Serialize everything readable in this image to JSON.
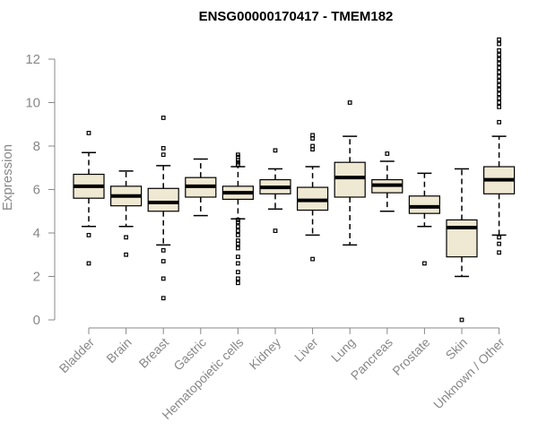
{
  "chart_data": {
    "type": "boxplot",
    "title": "ENSG00000170417 - TMEM182",
    "xlabel": "",
    "ylabel": "Expression",
    "ylim": [
      0,
      12
    ],
    "yticks": [
      0,
      2,
      4,
      6,
      8,
      10,
      12
    ],
    "categories": [
      "Bladder",
      "Brain",
      "Breast",
      "Gastric",
      "Hematopoietic cells",
      "Kidney",
      "Liver",
      "Lung",
      "Pancreas",
      "Prostate",
      "Skin",
      "Unknown / Other"
    ],
    "boxes": [
      {
        "q1": 5.6,
        "median": 6.15,
        "q3": 6.7,
        "lower_whisker": 4.3,
        "upper_whisker": 7.7,
        "outliers": [
          8.6,
          3.9,
          2.6
        ]
      },
      {
        "q1": 5.25,
        "median": 5.7,
        "q3": 6.15,
        "lower_whisker": 4.3,
        "upper_whisker": 6.85,
        "outliers": [
          3.8,
          3.0
        ]
      },
      {
        "q1": 5.0,
        "median": 5.4,
        "q3": 6.05,
        "lower_whisker": 3.45,
        "upper_whisker": 7.1,
        "outliers": [
          9.3,
          7.9,
          7.6,
          3.2,
          2.7,
          1.9,
          1.0
        ]
      },
      {
        "q1": 5.65,
        "median": 6.15,
        "q3": 6.55,
        "lower_whisker": 4.8,
        "upper_whisker": 7.4,
        "outliers": []
      },
      {
        "q1": 5.55,
        "median": 5.85,
        "q3": 6.15,
        "lower_whisker": 4.65,
        "upper_whisker": 7.05,
        "outliers": [
          7.6,
          7.5,
          7.35,
          7.25,
          7.15,
          4.6,
          4.5,
          4.3,
          4.1,
          3.9,
          3.65,
          3.5,
          3.3,
          2.9,
          2.6,
          2.2,
          1.9,
          1.7
        ]
      },
      {
        "q1": 5.8,
        "median": 6.1,
        "q3": 6.45,
        "lower_whisker": 5.1,
        "upper_whisker": 6.95,
        "outliers": [
          7.8,
          4.1
        ]
      },
      {
        "q1": 5.05,
        "median": 5.5,
        "q3": 6.1,
        "lower_whisker": 3.9,
        "upper_whisker": 7.05,
        "outliers": [
          8.5,
          8.35,
          8.0,
          7.85,
          2.8
        ]
      },
      {
        "q1": 5.65,
        "median": 6.55,
        "q3": 7.25,
        "lower_whisker": 3.45,
        "upper_whisker": 8.45,
        "outliers": [
          10.0
        ]
      },
      {
        "q1": 5.85,
        "median": 6.2,
        "q3": 6.45,
        "lower_whisker": 5.0,
        "upper_whisker": 7.3,
        "outliers": [
          7.65
        ]
      },
      {
        "q1": 4.9,
        "median": 5.2,
        "q3": 5.7,
        "lower_whisker": 4.3,
        "upper_whisker": 6.75,
        "outliers": [
          2.6
        ]
      },
      {
        "q1": 2.9,
        "median": 4.25,
        "q3": 4.6,
        "lower_whisker": 2.0,
        "upper_whisker": 6.95,
        "outliers": [
          0.0
        ]
      },
      {
        "q1": 5.8,
        "median": 6.45,
        "q3": 7.05,
        "lower_whisker": 3.9,
        "upper_whisker": 8.45,
        "outliers": [
          12.9,
          12.7,
          12.4,
          12.2,
          12.0,
          11.8,
          11.6,
          11.4,
          11.2,
          11.0,
          10.8,
          10.6,
          10.4,
          10.2,
          10.0,
          9.8,
          9.1,
          3.8,
          3.5,
          3.1
        ]
      }
    ]
  }
}
